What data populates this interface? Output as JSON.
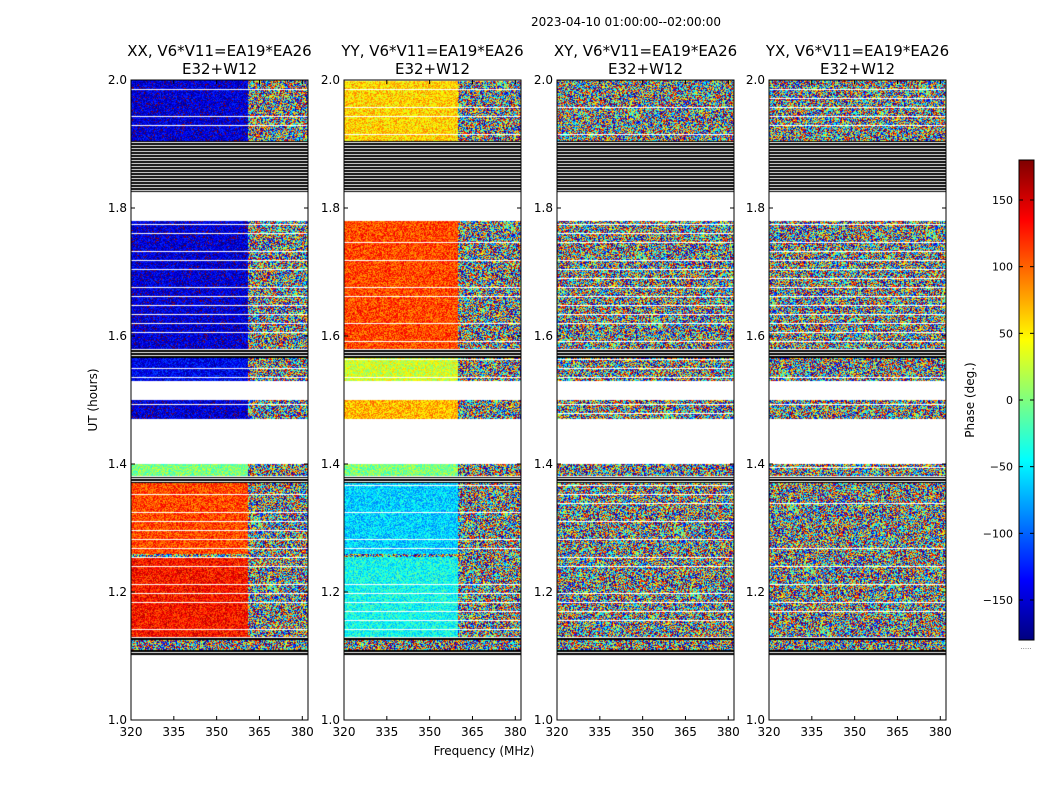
{
  "figure": {
    "suptitle": "2023-04-10  01:00:00--02:00:00",
    "xlabel": "Frequency (MHz)",
    "ylabel": "UT (hours)"
  },
  "colorbar": {
    "label": "Phase (deg.)",
    "range": [
      -180,
      180
    ],
    "ticks": [
      "150",
      "100",
      "50",
      "0",
      "−50",
      "−100",
      "−150"
    ],
    "tick_values": [
      150,
      100,
      50,
      0,
      -50,
      -100,
      -150
    ],
    "colormap": "jet",
    "colors": [
      "#00007f",
      "#0000ff",
      "#007fff",
      "#00ffff",
      "#7fff7f",
      "#ffff00",
      "#ff7f00",
      "#ff0000",
      "#7f0000"
    ],
    "footer": "....."
  },
  "chart_data": [
    {
      "type": "heatmap",
      "title_line1": "XX, V6*V11=EA19*EA26",
      "title_line2": "E32+W12",
      "xlim": [
        320,
        382
      ],
      "ylim": [
        1.0,
        2.0
      ],
      "xticks": [
        "320",
        "335",
        "350",
        "365",
        "380"
      ],
      "xtick_values": [
        320,
        335,
        350,
        365,
        380
      ],
      "yticks": [
        "1.0",
        "1.2",
        "1.4",
        "1.6",
        "1.8",
        "2.0"
      ],
      "ytick_values": [
        1.0,
        1.2,
        1.4,
        1.6,
        1.8,
        2.0
      ],
      "z": "phase (deg.)",
      "base_phase_by_ut": [
        {
          "ut_range": [
            1.905,
            2.0
          ],
          "phase": -150
        },
        {
          "ut_range": [
            1.58,
            1.78
          ],
          "phase": -150
        },
        {
          "ut_range": [
            1.53,
            1.565
          ],
          "phase": -140
        },
        {
          "ut_range": [
            1.47,
            1.5
          ],
          "phase": -150
        },
        {
          "ut_range": [
            1.38,
            1.4
          ],
          "phase": 0
        },
        {
          "ut_range": [
            1.26,
            1.37
          ],
          "phase": 110
        },
        {
          "ut_range": [
            1.13,
            1.255
          ],
          "phase": 130
        }
      ],
      "coherent_below_mhz": 361
    },
    {
      "type": "heatmap",
      "title_line1": "YY, V6*V11=EA19*EA26",
      "title_line2": "E32+W12",
      "xlim": [
        320,
        382
      ],
      "ylim": [
        1.0,
        2.0
      ],
      "xticks": [
        "320",
        "335",
        "350",
        "365",
        "380"
      ],
      "xtick_values": [
        320,
        335,
        350,
        365,
        380
      ],
      "yticks": [
        "1.0",
        "1.2",
        "1.4",
        "1.6",
        "1.8",
        "2.0"
      ],
      "ytick_values": [
        1.0,
        1.2,
        1.4,
        1.6,
        1.8,
        2.0
      ],
      "z": "phase (deg.)",
      "base_phase_by_ut": [
        {
          "ut_range": [
            1.905,
            2.0
          ],
          "phase": 60
        },
        {
          "ut_range": [
            1.58,
            1.78
          ],
          "phase": 110
        },
        {
          "ut_range": [
            1.53,
            1.565
          ],
          "phase": 30
        },
        {
          "ut_range": [
            1.47,
            1.5
          ],
          "phase": 70
        },
        {
          "ut_range": [
            1.38,
            1.4
          ],
          "phase": 0
        },
        {
          "ut_range": [
            1.26,
            1.37
          ],
          "phase": -60
        },
        {
          "ut_range": [
            1.13,
            1.255
          ],
          "phase": -40
        }
      ],
      "coherent_below_mhz": 360
    },
    {
      "type": "heatmap",
      "title_line1": "XY, V6*V11=EA19*EA26",
      "title_line2": "E32+W12",
      "xlim": [
        320,
        382
      ],
      "ylim": [
        1.0,
        2.0
      ],
      "xticks": [
        "320",
        "335",
        "350",
        "365",
        "380"
      ],
      "xtick_values": [
        320,
        335,
        350,
        365,
        380
      ],
      "yticks": [
        "1.0",
        "1.2",
        "1.4",
        "1.6",
        "1.8",
        "2.0"
      ],
      "ytick_values": [
        1.0,
        1.2,
        1.4,
        1.6,
        1.8,
        2.0
      ],
      "z": "phase (deg.)",
      "base_phase_by_ut": [],
      "coherent_below_mhz": 320
    },
    {
      "type": "heatmap",
      "title_line1": "YX, V6*V11=EA19*EA26",
      "title_line2": "E32+W12",
      "xlim": [
        320,
        382
      ],
      "ylim": [
        1.0,
        2.0
      ],
      "xticks": [
        "320",
        "335",
        "350",
        "365",
        "380"
      ],
      "xtick_values": [
        320,
        335,
        350,
        365,
        380
      ],
      "yticks": [
        "1.0",
        "1.2",
        "1.4",
        "1.6",
        "1.8",
        "2.0"
      ],
      "ytick_values": [
        1.0,
        1.2,
        1.4,
        1.6,
        1.8,
        2.0
      ],
      "z": "phase (deg.)",
      "base_phase_by_ut": [],
      "coherent_below_mhz": 320
    }
  ],
  "flagged_ut_bands": [
    {
      "ut_range": [
        1.825,
        1.905
      ],
      "style": "striped"
    },
    {
      "ut_range": [
        1.78,
        1.825
      ],
      "style": "blank"
    },
    {
      "ut_range": [
        1.565,
        1.58
      ],
      "style": "striped"
    },
    {
      "ut_range": [
        1.5,
        1.53
      ],
      "style": "blank"
    },
    {
      "ut_range": [
        1.4,
        1.47
      ],
      "style": "blank"
    },
    {
      "ut_range": [
        1.37,
        1.38
      ],
      "style": "striped"
    },
    {
      "ut_range": [
        1.125,
        1.13
      ],
      "style": "striped"
    },
    {
      "ut_range": [
        1.1,
        1.11
      ],
      "style": "striped"
    },
    {
      "ut_range": [
        1.0,
        1.1
      ],
      "style": "blank"
    }
  ]
}
